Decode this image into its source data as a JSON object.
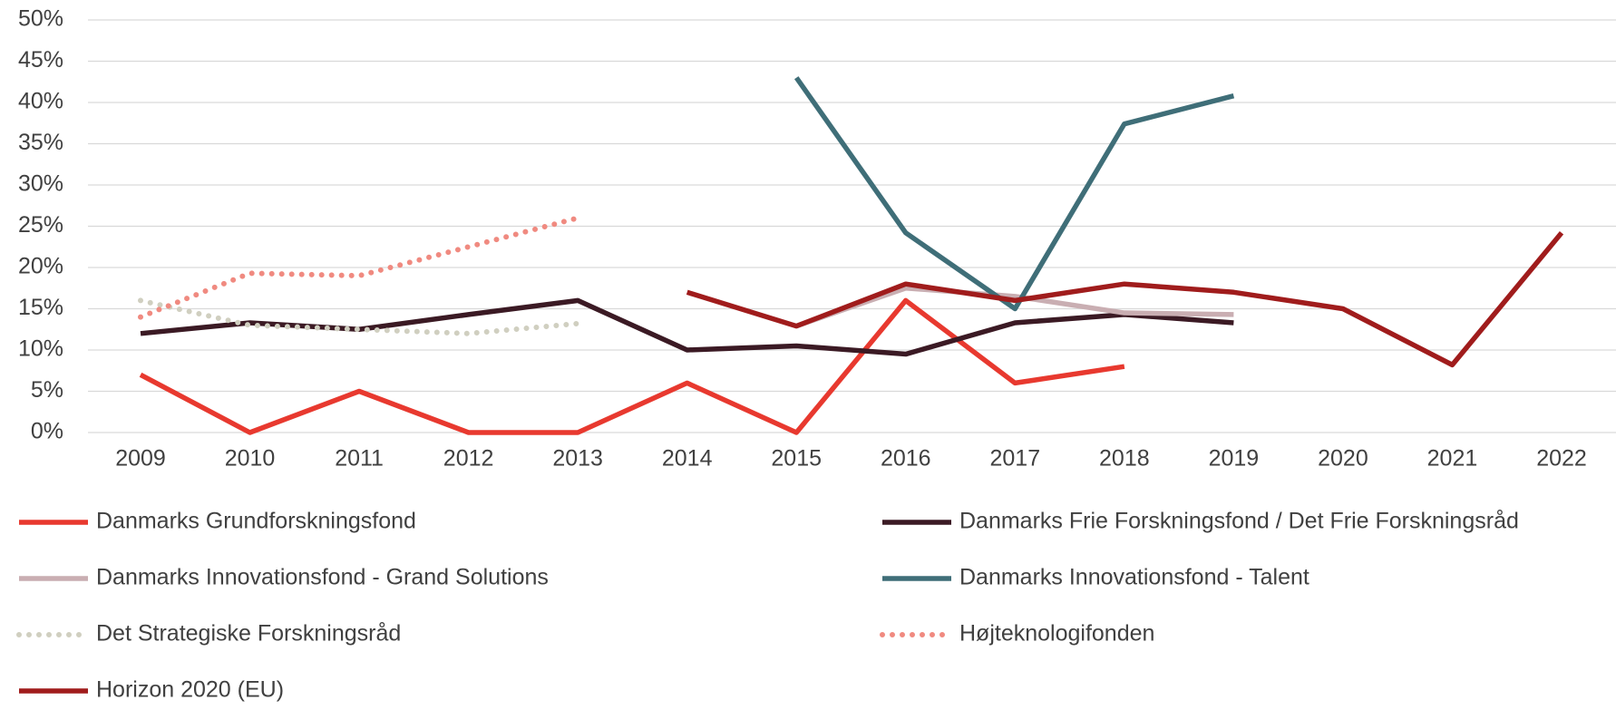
{
  "chart_data": {
    "type": "line",
    "categories": [
      "2009",
      "2010",
      "2011",
      "2012",
      "2013",
      "2014",
      "2015",
      "2016",
      "2017",
      "2018",
      "2019",
      "2020",
      "2021",
      "2022"
    ],
    "ylim": [
      0,
      50
    ],
    "yticks": [
      {
        "value": 0,
        "label": "0%"
      },
      {
        "value": 5,
        "label": "5%"
      },
      {
        "value": 10,
        "label": "10%"
      },
      {
        "value": 15,
        "label": "15%"
      },
      {
        "value": 20,
        "label": "20%"
      },
      {
        "value": 25,
        "label": "25%"
      },
      {
        "value": 30,
        "label": "30%"
      },
      {
        "value": 35,
        "label": "35%"
      },
      {
        "value": 40,
        "label": "40%"
      },
      {
        "value": 45,
        "label": "45%"
      },
      {
        "value": 50,
        "label": "50%"
      }
    ],
    "grid": true,
    "legend": "bottom",
    "series": [
      {
        "name": "Danmarks Grundforskningsfond",
        "color": "#e8392f",
        "style": "solid",
        "values": [
          7,
          0,
          5,
          0,
          0,
          6,
          0,
          16,
          6,
          8,
          null,
          null,
          null,
          null
        ]
      },
      {
        "name": "Danmarks Frie Forskningsfond / Det Frie Forskningsråd",
        "color": "#3b1a24",
        "style": "solid",
        "values": [
          12,
          13.3,
          12.5,
          14.3,
          16,
          10,
          10.5,
          9.5,
          13.3,
          14.3,
          13.3,
          null,
          null,
          null
        ]
      },
      {
        "name": "Danmarks Innovationsfond - Grand Solutions",
        "color": "#c9aeb2",
        "style": "solid",
        "values": [
          null,
          null,
          null,
          null,
          null,
          null,
          12.9,
          17.5,
          16.5,
          14.5,
          14.3,
          null,
          null,
          null
        ]
      },
      {
        "name": "Danmarks Innovationsfond - Talent",
        "color": "#3f6e78",
        "style": "solid",
        "values": [
          null,
          null,
          null,
          null,
          null,
          null,
          43,
          24.2,
          15,
          37.4,
          40.8,
          null,
          null,
          null
        ]
      },
      {
        "name": "Det Strategiske Forskningsråd",
        "color": "#d0cfc0",
        "style": "dotted",
        "values": [
          16,
          13,
          12.5,
          12,
          13.2,
          null,
          null,
          null,
          null,
          null,
          null,
          null,
          null,
          null
        ]
      },
      {
        "name": "Højteknologifonden",
        "color": "#f08a80",
        "style": "dotted",
        "values": [
          14,
          19.3,
          19,
          22.5,
          26,
          null,
          null,
          null,
          null,
          null,
          null,
          null,
          null,
          null
        ]
      },
      {
        "name": "Horizon 2020 (EU)",
        "color": "#a01c1c",
        "style": "solid",
        "values": [
          null,
          null,
          null,
          null,
          null,
          17,
          12.9,
          18,
          16,
          18,
          17,
          15,
          8.2,
          24.2
        ]
      }
    ]
  }
}
